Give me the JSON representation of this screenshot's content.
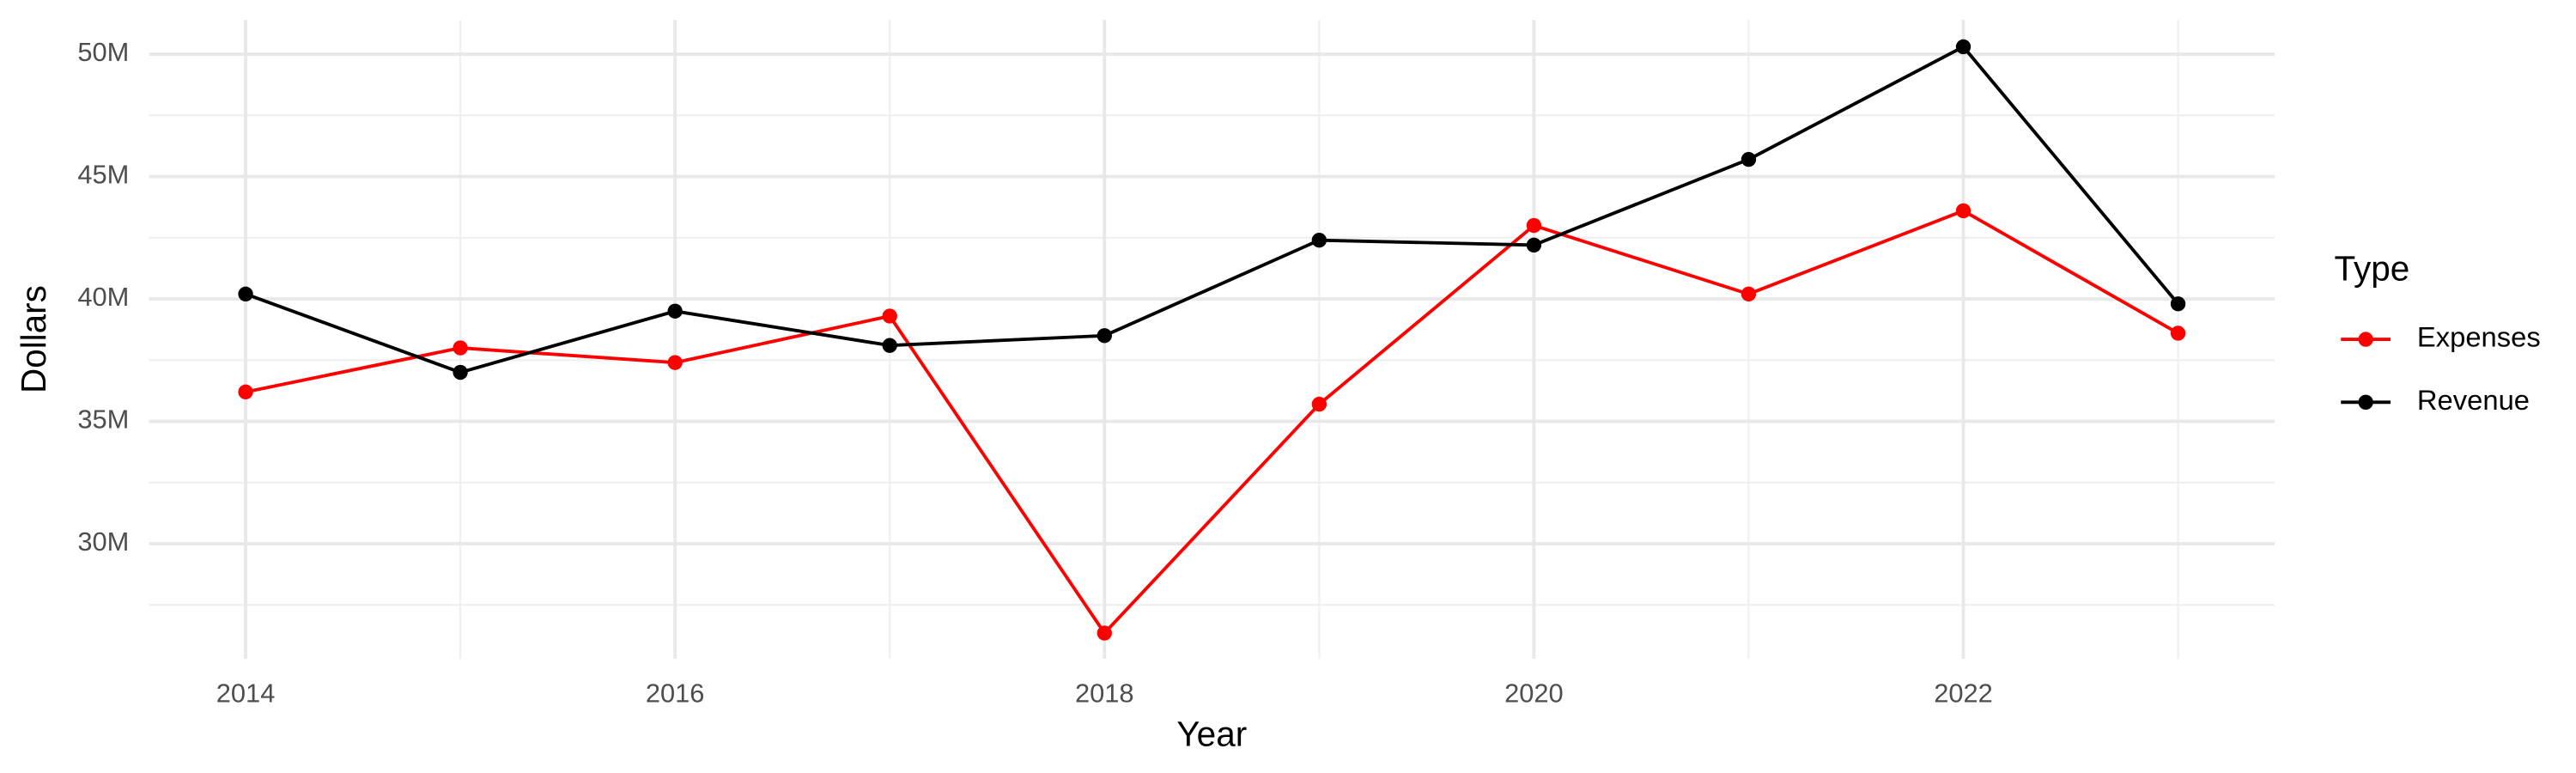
{
  "chart_data": {
    "type": "line",
    "x_label": "Year",
    "y_label": "Dollars",
    "x": [
      2014,
      2015,
      2016,
      2017,
      2018,
      2019,
      2020,
      2021,
      2022,
      2023
    ],
    "series": [
      {
        "name": "Expenses",
        "color": "#ff0000",
        "values": [
          36200000,
          38000000,
          37400000,
          39300000,
          26350000,
          35700000,
          43000000,
          40200000,
          43600000,
          38600000
        ]
      },
      {
        "name": "Revenue",
        "color": "#000000",
        "values": [
          40200000,
          37000000,
          39500000,
          38100000,
          38500000,
          42400000,
          42200000,
          45700000,
          50300000,
          39800000
        ]
      }
    ],
    "xlim": [
      2013.55,
      2023.45
    ],
    "xticks": [
      2014,
      2016,
      2018,
      2020,
      2022
    ],
    "ylim": [
      25300000,
      51400000
    ],
    "yticks": [
      {
        "value": 30000000,
        "label": "30M"
      },
      {
        "value": 35000000,
        "label": "35M"
      },
      {
        "value": 40000000,
        "label": "40M"
      },
      {
        "value": 45000000,
        "label": "45M"
      },
      {
        "value": 50000000,
        "label": "50M"
      }
    ],
    "grid": true,
    "legend": {
      "title": "Type",
      "position": "right"
    }
  }
}
